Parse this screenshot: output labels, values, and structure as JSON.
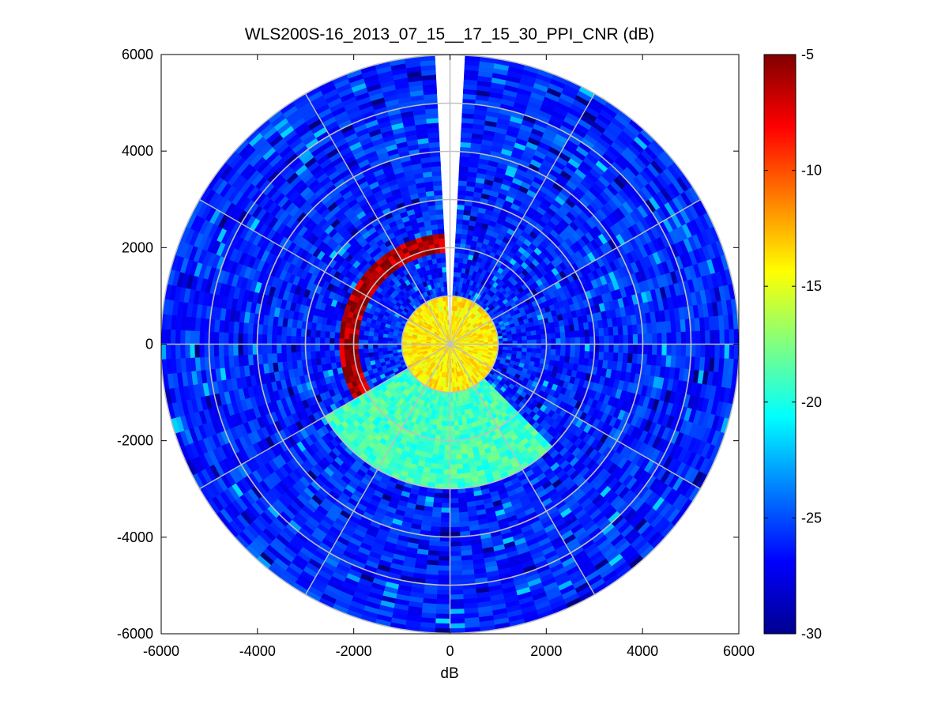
{
  "chart_data": {
    "type": "heatmap",
    "subtype": "polar-ppi",
    "title": "WLS200S-16_2013_07_15__17_15_30_PPI_CNR (dB)",
    "xlabel": "dB",
    "ylabel": "",
    "xlim": [
      -6000,
      6000
    ],
    "ylim": [
      -6000,
      6000
    ],
    "x_ticks": [
      -6000,
      -4000,
      -2000,
      0,
      2000,
      4000,
      6000
    ],
    "y_ticks": [
      -6000,
      -4000,
      -2000,
      0,
      2000,
      4000,
      6000
    ],
    "x_tick_labels": [
      "-6000",
      "-4000",
      "-2000",
      "0",
      "2000",
      "4000",
      "6000"
    ],
    "y_tick_labels": [
      "-6000",
      "-4000",
      "-2000",
      "0",
      "2000",
      "4000",
      "6000"
    ],
    "max_range": 6000,
    "range_rings": [
      1000,
      2000,
      3000,
      4000,
      5000,
      6000
    ],
    "spoke_angles_deg": [
      0,
      30,
      60,
      90,
      120,
      150,
      180,
      210,
      240,
      270,
      300,
      330
    ],
    "blind_sector_azimuth_deg": [
      -4,
      4
    ],
    "grid": true,
    "colormap": "jet",
    "colorbar": {
      "location": "right",
      "clim": [
        -30,
        -5
      ],
      "ticks": [
        -5,
        -10,
        -15,
        -20,
        -25,
        -30
      ],
      "tick_labels": [
        "-5",
        "-10",
        "-15",
        "-20",
        "-25",
        "-30"
      ]
    },
    "regions": [
      {
        "name": "near-field core",
        "range_m": [
          0,
          1000
        ],
        "azimuth_deg": [
          0,
          360
        ],
        "cnr_db": -14
      },
      {
        "name": "south-west high-signal sector",
        "range_m": [
          1000,
          3000
        ],
        "azimuth_deg": [
          135,
          240
        ],
        "cnr_db": -19
      },
      {
        "name": "strong return rim",
        "range_m": [
          1900,
          2300
        ],
        "azimuth_deg": [
          240,
          360
        ],
        "cnr_db": -6
      },
      {
        "name": "background",
        "range_m": [
          1000,
          6000
        ],
        "azimuth_deg": [
          0,
          360
        ],
        "cnr_db": -26
      }
    ]
  }
}
